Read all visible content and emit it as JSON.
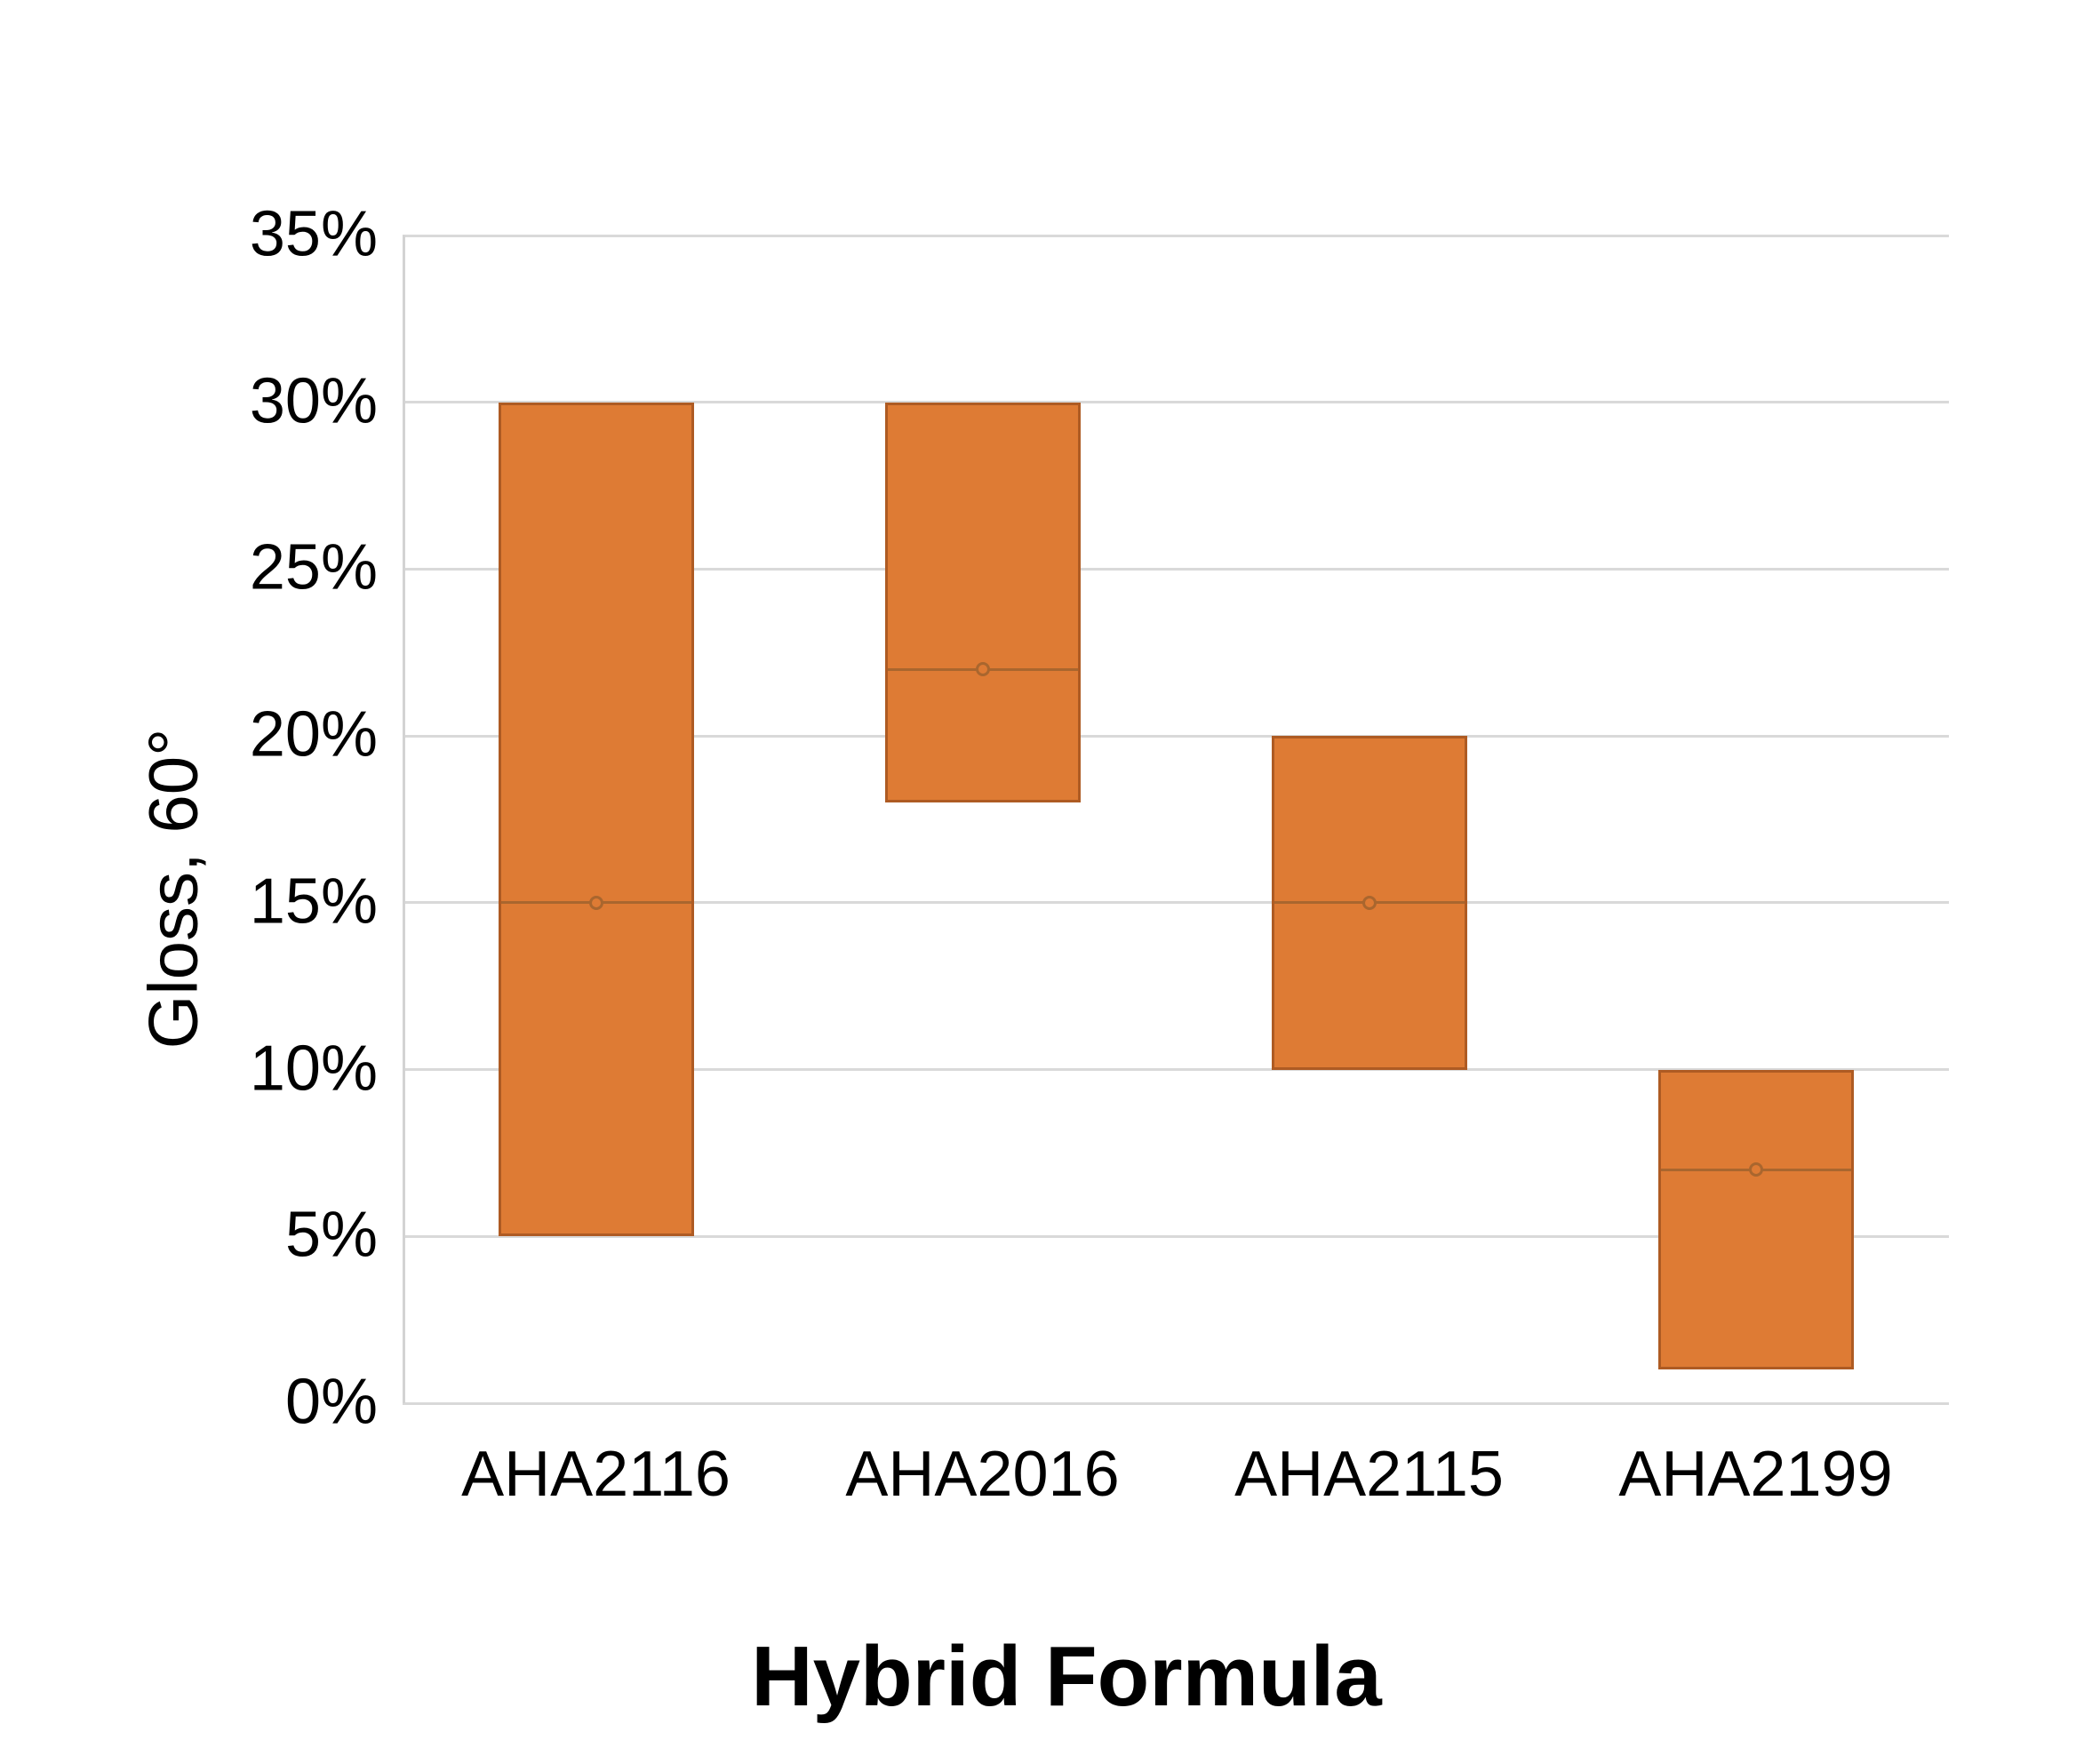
{
  "chart_data": {
    "type": "bar",
    "subtype": "floating-range-bars",
    "title": "",
    "xlabel": "Hybrid Formula",
    "ylabel": "Gloss, 60°",
    "categories": [
      "AHA2116",
      "AHA2016",
      "AHA2115",
      "AHA2199"
    ],
    "bars": [
      {
        "category": "AHA2116",
        "low": 5,
        "high": 30,
        "marker": 15
      },
      {
        "category": "AHA2016",
        "low": 18,
        "high": 30,
        "marker": 22
      },
      {
        "category": "AHA2115",
        "low": 10,
        "high": 20,
        "marker": 15
      },
      {
        "category": "AHA2199",
        "low": 1,
        "high": 10,
        "marker": 7
      }
    ],
    "value_unit": "%",
    "ylim": [
      0,
      35
    ],
    "ytick_step": 5,
    "ytick_labels": [
      "0%",
      "5%",
      "10%",
      "15%",
      "20%",
      "25%",
      "30%",
      "35%"
    ],
    "grid": true,
    "legend": "none",
    "colors": {
      "bar_fill": "#DE7B34",
      "bar_border": "#AE5B23",
      "marker": "#A9662E",
      "gridline": "#D9D9D9",
      "axis_line": "#D3D3D3",
      "text": "#000000",
      "background": "#FFFFFF"
    }
  }
}
